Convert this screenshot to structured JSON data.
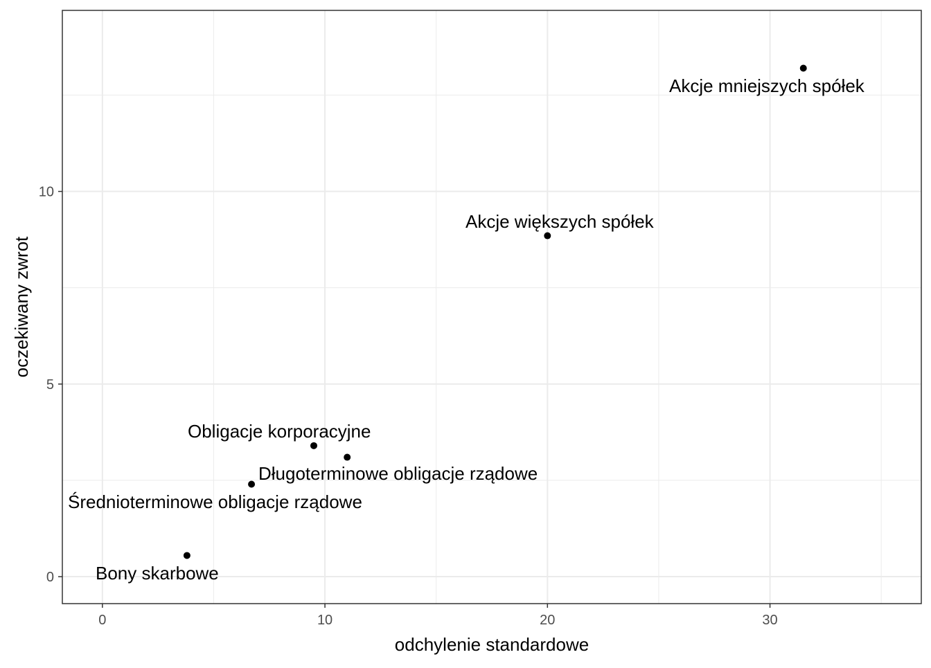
{
  "chart_data": {
    "type": "scatter",
    "title": "",
    "xlabel": "odchylenie standardowe",
    "ylabel": "oczekiwany zwrot",
    "xlim": [
      -1.8,
      36.8
    ],
    "ylim": [
      -0.7,
      14.7
    ],
    "x_ticks": [
      0,
      10,
      20,
      30
    ],
    "y_ticks": [
      0,
      5,
      10
    ],
    "x_minor_ticks": [
      5,
      15,
      25,
      35
    ],
    "y_minor_ticks": [
      2.5,
      7.5,
      12.5
    ],
    "grid": true,
    "legend": "none",
    "points": [
      {
        "label": "Bony skarbowe",
        "x": 3.8,
        "y": 0.55,
        "label_pos": "below-left"
      },
      {
        "label": "Średnioterminowe obligacje rządowe",
        "x": 6.7,
        "y": 2.4,
        "label_pos": "below-left"
      },
      {
        "label": "Obligacje korporacyjne",
        "x": 9.5,
        "y": 3.4,
        "label_pos": "above-left"
      },
      {
        "label": "Długoterminowe obligacje rządowe",
        "x": 11.0,
        "y": 3.1,
        "label_pos": "below-right"
      },
      {
        "label": "Akcje większych spółek",
        "x": 20.0,
        "y": 8.85,
        "label_pos": "above"
      },
      {
        "label": "Akcje mniejszych spółek",
        "x": 31.5,
        "y": 13.2,
        "label_pos": "below-left"
      }
    ]
  }
}
